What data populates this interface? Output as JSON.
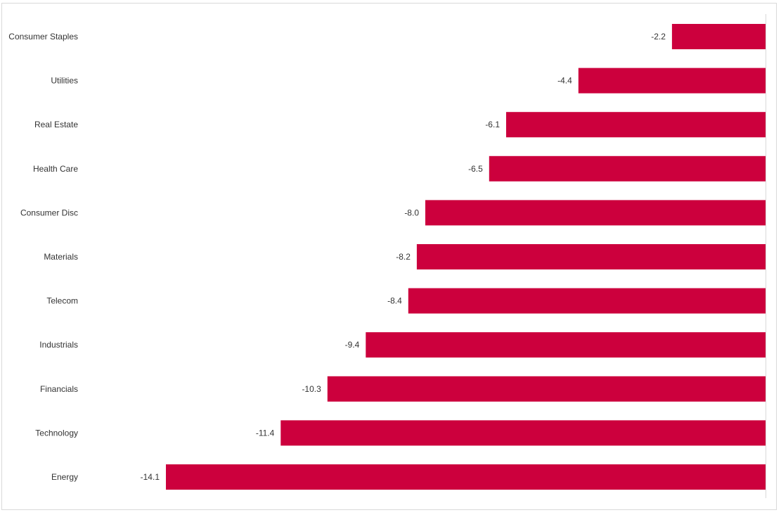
{
  "chart_data": {
    "type": "bar",
    "orientation": "horizontal",
    "categories": [
      "Consumer Staples",
      "Utilities",
      "Real Estate",
      "Health Care",
      "Consumer Disc",
      "Materials",
      "Telecom",
      "Industrials",
      "Financials",
      "Technology",
      "Energy"
    ],
    "values": [
      -2.2,
      -4.4,
      -6.1,
      -6.5,
      -8.0,
      -8.2,
      -8.4,
      -9.4,
      -10.3,
      -11.4,
      -14.1
    ],
    "value_labels": [
      "-2.2",
      "-4.4",
      "-6.1",
      "-6.5",
      "-8.0",
      "-8.2",
      "-8.4",
      "-9.4",
      "-10.3",
      "-11.4",
      "-14.1"
    ],
    "title": "",
    "xlabel": "",
    "ylabel": "",
    "xlim": [
      -15.7,
      0
    ],
    "grid": false,
    "legend": "none",
    "bar_color": "#cc003d",
    "axis_color": "#d9d9d9"
  }
}
